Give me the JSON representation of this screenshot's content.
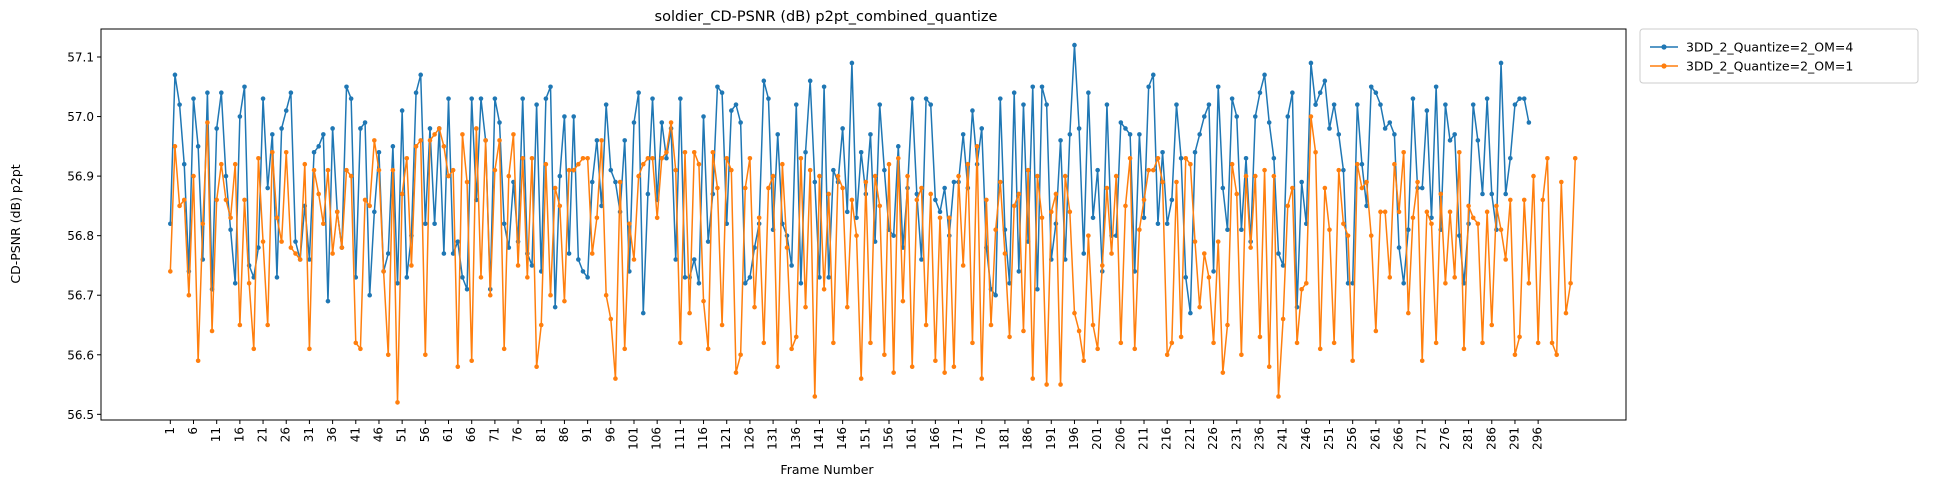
{
  "chart_data": {
    "type": "line",
    "title": "soldier_CD-PSNR (dB) p2pt_combined_quantize",
    "xlabel": "Frame Number",
    "ylabel": "CD-PSNR (dB) p2pt",
    "xlim": [
      1,
      300
    ],
    "ylim": [
      56.5,
      57.12
    ],
    "x_ticks": [
      1,
      6,
      11,
      16,
      21,
      26,
      31,
      36,
      41,
      46,
      51,
      56,
      61,
      66,
      71,
      76,
      81,
      86,
      91,
      96,
      101,
      106,
      111,
      116,
      121,
      126,
      131,
      136,
      141,
      146,
      151,
      156,
      161,
      166,
      171,
      176,
      181,
      186,
      191,
      196,
      201,
      206,
      211,
      216,
      221,
      226,
      231,
      236,
      241,
      246,
      251,
      256,
      261,
      266,
      271,
      276,
      281,
      286,
      291,
      296
    ],
    "y_ticks": [
      56.5,
      56.6,
      56.7,
      56.8,
      56.9,
      57.0,
      57.1
    ],
    "grid": false,
    "legend": "outside-top-right",
    "series": [
      {
        "name": "3DD_2_Quantize=2_OM=4",
        "color": "#1f77b4",
        "marker": "circle",
        "values": [
          56.82,
          57.07,
          57.02,
          56.92,
          56.74,
          57.03,
          56.95,
          56.76,
          57.04,
          56.71,
          56.98,
          57.04,
          56.9,
          56.81,
          56.72,
          57.0,
          57.05,
          56.75,
          56.73,
          56.78,
          57.03,
          56.88,
          56.97,
          56.73,
          56.98,
          57.01,
          57.04,
          56.79,
          56.76,
          56.85,
          56.76,
          56.94,
          56.95,
          56.97,
          56.69,
          56.98,
          56.84,
          56.78,
          57.05,
          57.03,
          56.73,
          56.98,
          56.99,
          56.7,
          56.84,
          56.94,
          56.74,
          56.77,
          56.95,
          56.72,
          57.01,
          56.73,
          56.8,
          57.04,
          57.07,
          56.82,
          56.98,
          56.82,
          56.98,
          56.77,
          57.03,
          56.77,
          56.79,
          56.73,
          56.71,
          57.03,
          56.86,
          57.03,
          56.96,
          56.71,
          57.03,
          56.99,
          56.82,
          56.78,
          56.89,
          56.79,
          57.03,
          56.77,
          56.75,
          57.02,
          56.74,
          57.03,
          57.05,
          56.68,
          56.9,
          57.0,
          56.77,
          57.0,
          56.76,
          56.74,
          56.73,
          56.89,
          56.96,
          56.85,
          57.02,
          56.91,
          56.89,
          56.84,
          56.96,
          56.74,
          56.99,
          57.04,
          56.67,
          56.87,
          57.03,
          56.86,
          56.99,
          56.93,
          56.98,
          56.76,
          57.03,
          56.73,
          56.73,
          56.76,
          56.72,
          57.0,
          56.79,
          56.87,
          57.05,
          57.04,
          56.82,
          57.01,
          57.02,
          56.99,
          56.72,
          56.73,
          56.78,
          56.82,
          57.06,
          57.03,
          56.81,
          56.97,
          56.82,
          56.8,
          56.75,
          57.02,
          56.72,
          56.94,
          57.06,
          56.89,
          56.73,
          57.05,
          56.73,
          56.91,
          56.89,
          56.98,
          56.84,
          57.09,
          56.83,
          56.94,
          56.87,
          56.97,
          56.79,
          57.02,
          56.91,
          56.81,
          56.8,
          56.95,
          56.78,
          56.88,
          57.03,
          56.87,
          56.76,
          57.03,
          57.02,
          56.86,
          56.84,
          56.88,
          56.8,
          56.89,
          56.89,
          56.97,
          56.88,
          57.01,
          56.92,
          56.98,
          56.78,
          56.71,
          56.7,
          57.03,
          56.81,
          56.72,
          57.04,
          56.74,
          57.02,
          56.79,
          57.05,
          56.71,
          57.05,
          57.02,
          56.76,
          56.82,
          56.96,
          56.76,
          56.97,
          57.12,
          56.98,
          56.77,
          57.04,
          56.83,
          56.91,
          56.74,
          57.02,
          56.8,
          56.8,
          56.99,
          56.98,
          56.97,
          56.74,
          56.97,
          56.83,
          57.05,
          57.07,
          56.82,
          56.94,
          56.82,
          56.86,
          57.02,
          56.93,
          56.73,
          56.67,
          56.94,
          56.97,
          57.0,
          57.02,
          56.74,
          57.05,
          56.88,
          56.81,
          57.03,
          57.0,
          56.81,
          56.93,
          56.79,
          57.0,
          57.04,
          57.07,
          56.99,
          56.93,
          56.77,
          56.75,
          57.0,
          57.04,
          56.68,
          56.89,
          56.82,
          57.09,
          57.02,
          57.04,
          57.06,
          56.98,
          57.02,
          56.97,
          56.91,
          56.72,
          56.72,
          57.02,
          56.92,
          56.85,
          57.05,
          57.04,
          57.02,
          56.98,
          56.99,
          56.97,
          56.78,
          56.72,
          56.81,
          57.03,
          56.88,
          56.88,
          57.01,
          56.83,
          57.05,
          56.81,
          57.02,
          56.96,
          56.97,
          56.8,
          56.72,
          56.82,
          57.02,
          56.96,
          56.87,
          57.03,
          56.87,
          56.81,
          57.09,
          56.87,
          56.93,
          57.02,
          57.03,
          57.03,
          56.99
        ]
      },
      {
        "name": "3DD_2_Quantize=2_OM=1",
        "color": "#ff7f0e",
        "marker": "circle",
        "values": [
          56.74,
          56.95,
          56.85,
          56.86,
          56.7,
          56.9,
          56.59,
          56.82,
          56.99,
          56.64,
          56.86,
          56.92,
          56.86,
          56.83,
          56.92,
          56.65,
          56.86,
          56.72,
          56.61,
          56.93,
          56.79,
          56.65,
          56.94,
          56.83,
          56.79,
          56.94,
          56.78,
          56.77,
          56.76,
          56.92,
          56.61,
          56.91,
          56.87,
          56.82,
          56.91,
          56.77,
          56.84,
          56.78,
          56.91,
          56.9,
          56.62,
          56.61,
          56.86,
          56.85,
          56.96,
          56.91,
          56.74,
          56.6,
          56.91,
          56.52,
          56.87,
          56.93,
          56.75,
          56.95,
          56.96,
          56.6,
          56.96,
          56.97,
          56.98,
          56.95,
          56.9,
          56.91,
          56.58,
          56.97,
          56.89,
          56.59,
          56.98,
          56.73,
          56.96,
          56.7,
          56.91,
          56.96,
          56.61,
          56.9,
          56.97,
          56.75,
          56.93,
          56.73,
          56.93,
          56.58,
          56.65,
          56.92,
          56.7,
          56.88,
          56.85,
          56.69,
          56.91,
          56.91,
          56.92,
          56.93,
          56.93,
          56.77,
          56.83,
          56.96,
          56.7,
          56.66,
          56.56,
          56.89,
          56.61,
          56.82,
          56.76,
          56.9,
          56.92,
          56.93,
          56.93,
          56.83,
          56.93,
          56.94,
          56.99,
          56.91,
          56.62,
          56.94,
          56.67,
          56.94,
          56.92,
          56.69,
          56.61,
          56.94,
          56.88,
          56.65,
          56.93,
          56.91,
          56.57,
          56.6,
          56.88,
          56.93,
          56.68,
          56.83,
          56.62,
          56.88,
          56.9,
          56.58,
          56.92,
          56.78,
          56.61,
          56.63,
          56.93,
          56.68,
          56.91,
          56.53,
          56.9,
          56.71,
          56.87,
          56.62,
          56.9,
          56.88,
          56.68,
          56.86,
          56.8,
          56.56,
          56.89,
          56.62,
          56.9,
          56.85,
          56.6,
          56.92,
          56.57,
          56.93,
          56.69,
          56.9,
          56.58,
          56.86,
          56.88,
          56.65,
          56.87,
          56.59,
          56.83,
          56.57,
          56.83,
          56.58,
          56.9,
          56.75,
          56.92,
          56.62,
          56.95,
          56.56,
          56.86,
          56.65,
          56.81,
          56.89,
          56.77,
          56.63,
          56.85,
          56.87,
          56.64,
          56.91,
          56.56,
          56.9,
          56.83,
          56.55,
          56.84,
          56.87,
          56.55,
          56.9,
          56.84,
          56.67,
          56.64,
          56.59,
          56.8,
          56.65,
          56.61,
          56.75,
          56.88,
          56.77,
          56.9,
          56.62,
          56.85,
          56.93,
          56.61,
          56.81,
          56.86,
          56.91,
          56.91,
          56.93,
          56.89,
          56.6,
          56.62,
          56.89,
          56.63,
          56.93,
          56.92,
          56.79,
          56.68,
          56.77,
          56.73,
          56.62,
          56.79,
          56.57,
          56.65,
          56.92,
          56.87,
          56.6,
          56.9,
          56.78,
          56.9,
          56.63,
          56.91,
          56.58,
          56.9,
          56.53,
          56.66,
          56.85,
          56.88,
          56.62,
          56.71,
          56.72,
          57.0,
          56.94,
          56.61,
          56.88,
          56.81,
          56.62,
          56.91,
          56.82,
          56.8,
          56.59,
          56.92,
          56.88,
          56.89,
          56.8,
          56.64,
          56.84,
          56.84,
          56.73,
          56.92,
          56.84,
          56.94,
          56.67,
          56.83,
          56.89,
          56.59,
          56.84,
          56.82,
          56.62,
          56.87,
          56.72,
          56.84,
          56.73,
          56.94,
          56.61,
          56.85,
          56.83,
          56.82,
          56.62,
          56.84,
          56.65,
          56.85,
          56.81,
          56.76,
          56.86,
          56.6,
          56.63,
          56.86,
          56.72,
          56.9,
          56.62,
          56.86,
          56.93,
          56.62,
          56.6,
          56.89,
          56.67,
          56.72,
          56.93
        ]
      }
    ]
  }
}
